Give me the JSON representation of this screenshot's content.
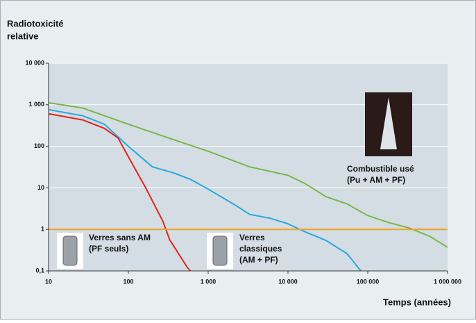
{
  "chart_data": {
    "type": "line",
    "y_label": [
      "Radiotoxicité",
      "relative"
    ],
    "x_label": "Temps (années)",
    "xscale": "log",
    "yscale": "log",
    "grid": true,
    "xlim": [
      10,
      1000000
    ],
    "xticks": [
      10,
      100,
      {
        "value": 1000,
        "label": "1 000"
      },
      {
        "value": 10000,
        "label": "10 000"
      },
      {
        "value": 100000,
        "label": "100 000"
      },
      {
        "value": 1000000,
        "label": "1 000 000"
      }
    ],
    "ylim": [
      0.1,
      10000
    ],
    "yticks": [
      {
        "value": 0.1,
        "label": "0,1"
      },
      1,
      10,
      100,
      {
        "value": 1000,
        "label": "1 000"
      },
      {
        "value": 10000,
        "label": "10 000"
      }
    ],
    "series": [
      {
        "color": "#7ab648",
        "x": [
          10,
          27,
          100,
          366,
          1000,
          3300,
          10000,
          16000,
          30000,
          55000,
          100000,
          180000,
          330000,
          600000,
          1000000
        ],
        "values": [
          1120,
          830,
          340,
          145,
          76,
          32,
          20,
          13,
          6.1,
          4.1,
          2.15,
          1.47,
          1.08,
          0.68,
          0.37
        ]
      },
      {
        "color": "#29a8e0",
        "x": [
          10,
          27,
          50,
          100,
          200,
          366,
          600,
          1000,
          2200,
          3300,
          6000,
          10000,
          16000,
          30000,
          55000,
          82000
        ],
        "values": [
          765,
          540,
          340,
          100,
          32,
          23,
          16,
          9.3,
          3.8,
          2.3,
          1.85,
          1.36,
          0.89,
          0.54,
          0.26,
          0.1
        ]
      },
      {
        "color": "#e2231a",
        "x": [
          10,
          27,
          50,
          74,
          100,
          165,
          270,
          330,
          550,
          600
        ],
        "values": [
          607,
          430,
          270,
          160,
          56,
          10,
          1.58,
          0.56,
          0.12,
          0.1
        ]
      },
      {
        "color": "#f0a020",
        "x": [
          10,
          1000000
        ],
        "values": [
          1,
          1
        ]
      }
    ],
    "annotations": [
      [
        "Combustible usé",
        "(Pu + AM + PF)"
      ],
      [
        "Verres",
        "classiques",
        "(AM + PF)"
      ],
      [
        "Verres sans AM",
        "(PF seuls)"
      ]
    ]
  }
}
